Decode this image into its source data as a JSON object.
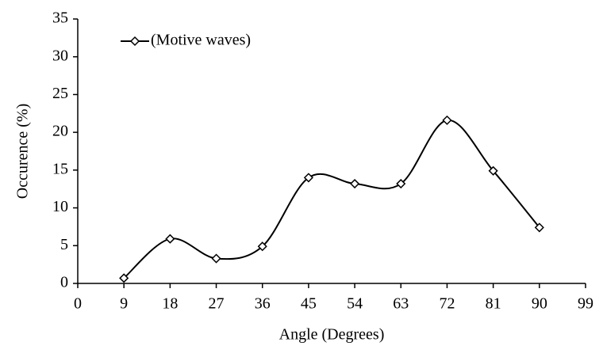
{
  "chart_data": {
    "type": "line",
    "x": [
      9,
      18,
      27,
      36,
      45,
      54,
      63,
      72,
      81,
      90
    ],
    "series": [
      {
        "name": "(Motive waves)",
        "color": "#000000",
        "marker": "diamond",
        "smooth": true,
        "values": [
          0.7,
          5.9,
          3.3,
          4.9,
          14.0,
          13.2,
          13.2,
          21.6,
          14.9,
          7.4
        ]
      }
    ],
    "xlabel": "Angle (Degrees)",
    "ylabel": "Occurence (%)",
    "xlim": [
      0,
      99
    ],
    "xticks": [
      0,
      9,
      18,
      27,
      36,
      45,
      54,
      63,
      72,
      81,
      90,
      99
    ],
    "ylim": [
      0,
      35
    ],
    "yticks": [
      0,
      5,
      10,
      15,
      20,
      25,
      30,
      35
    ],
    "grid": false,
    "legend": "top-left"
  }
}
